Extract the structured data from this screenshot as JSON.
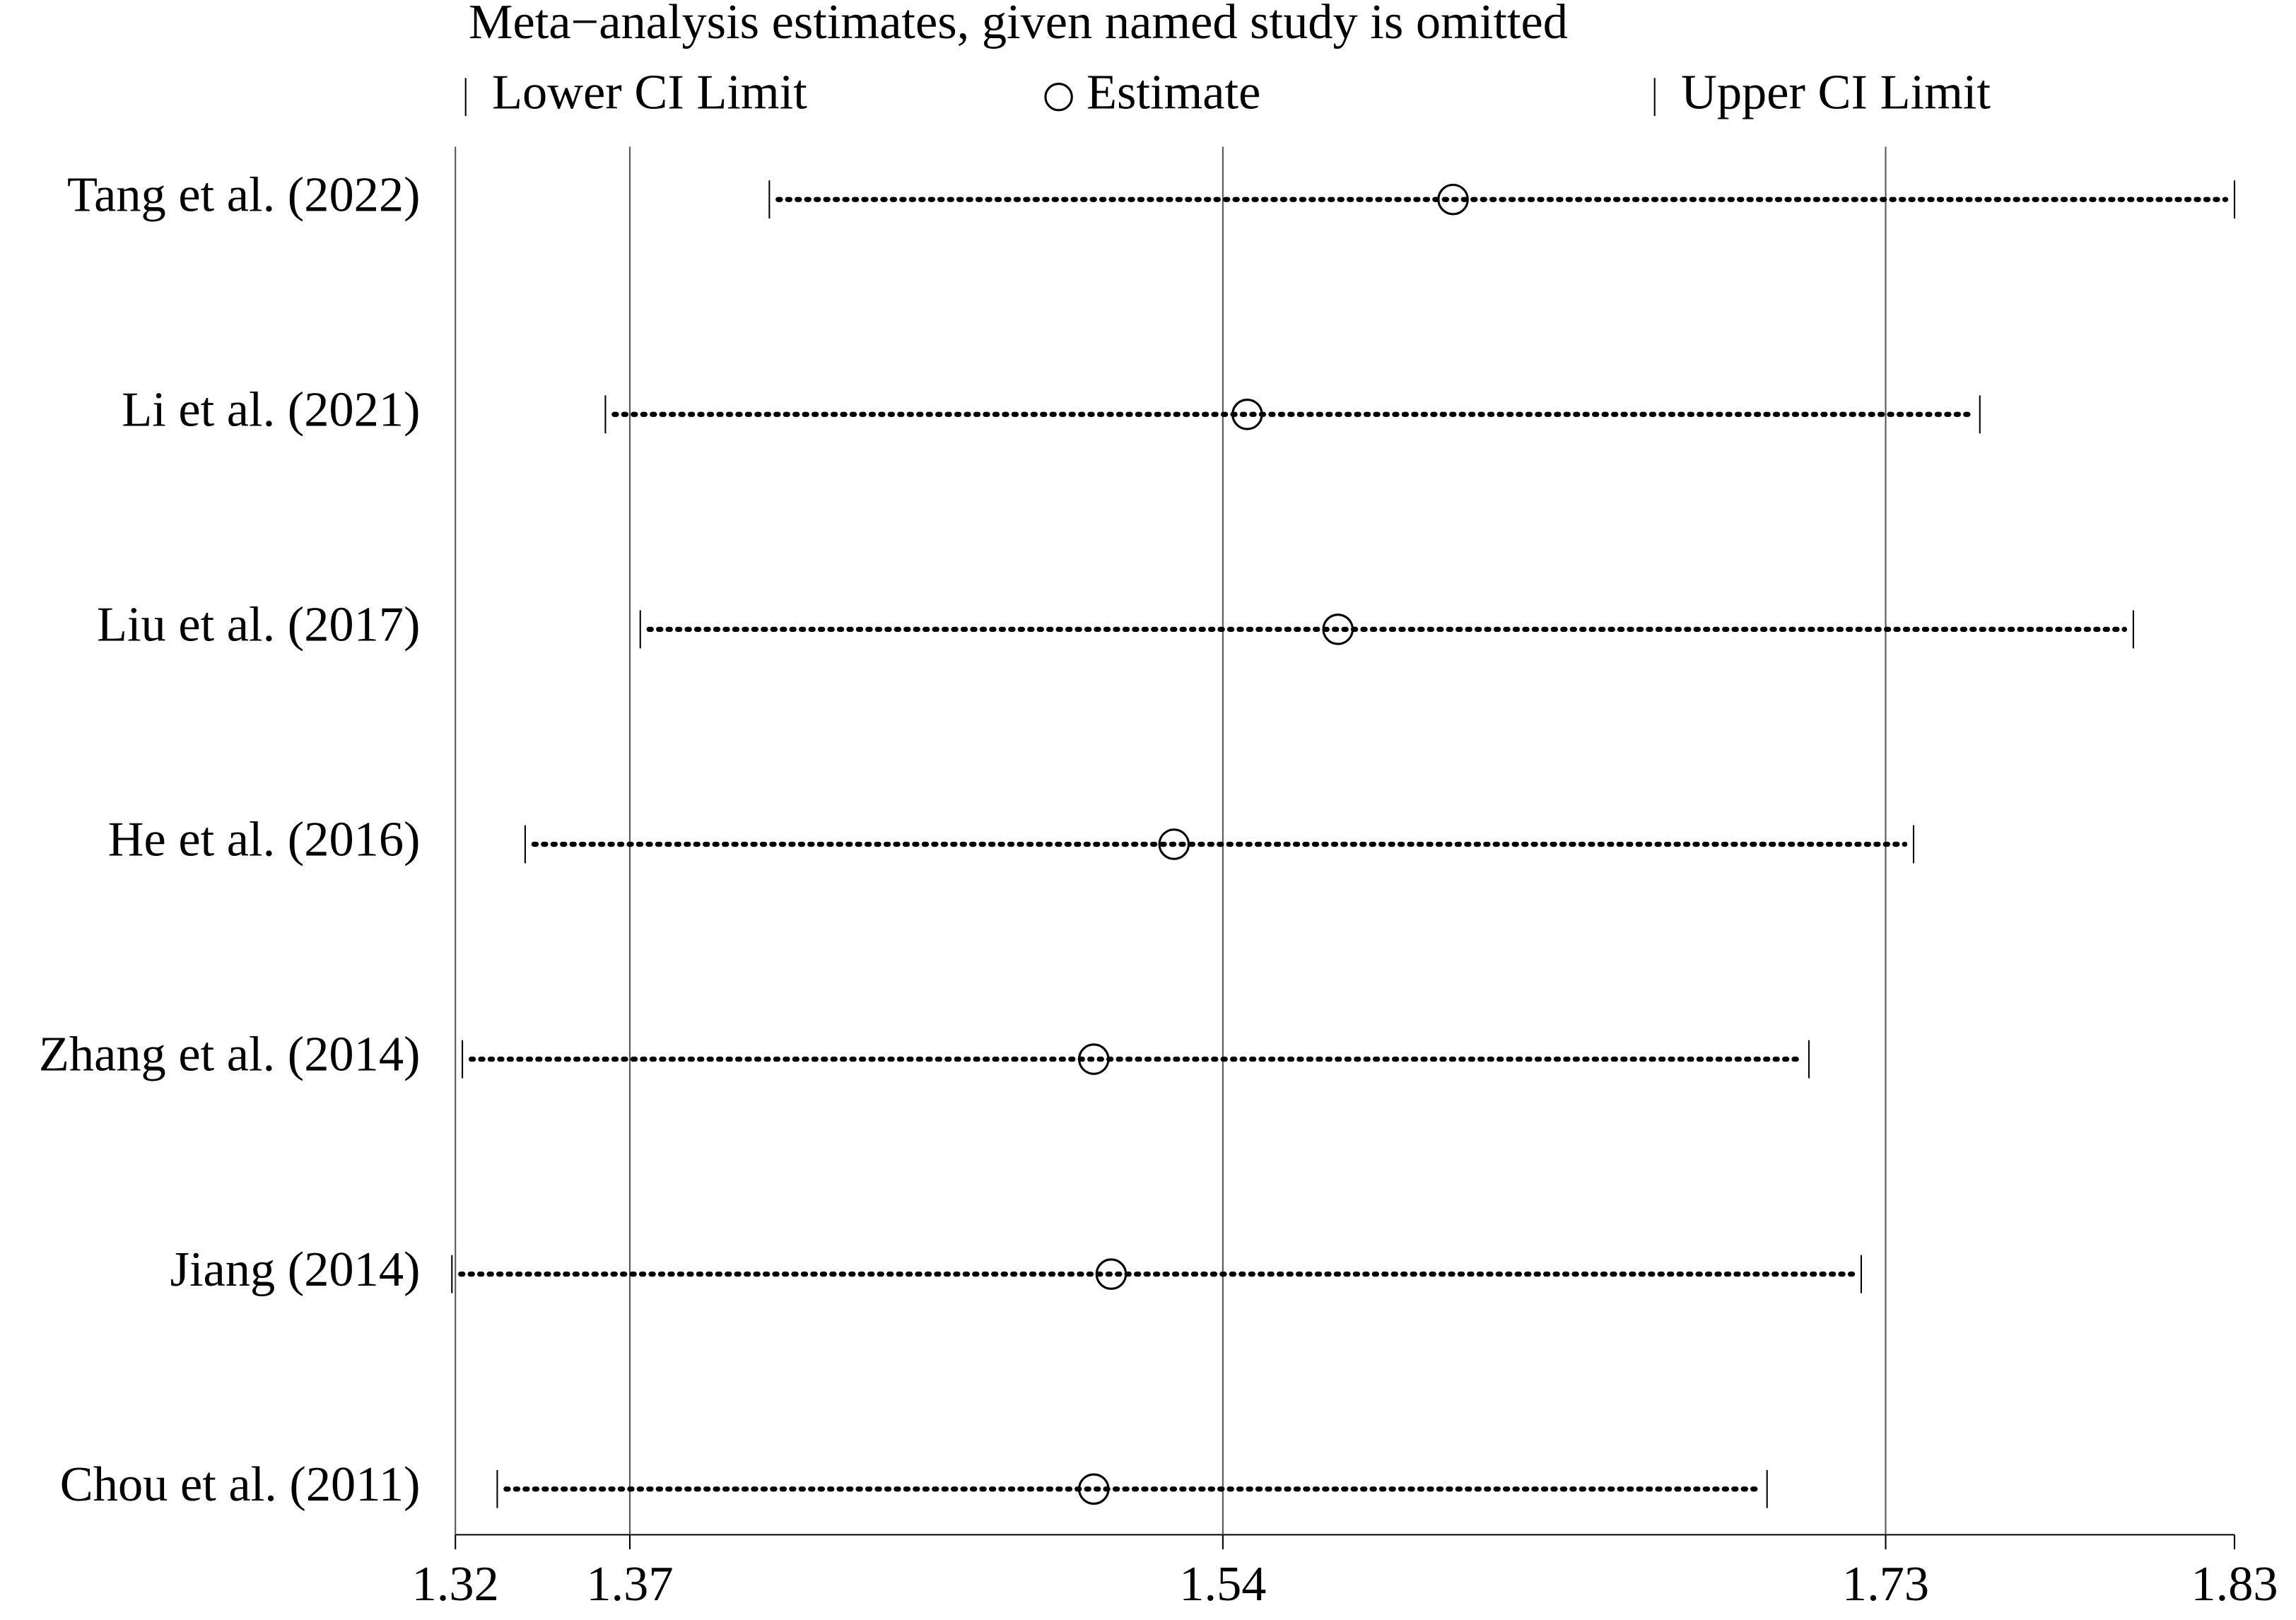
{
  "chart_data": {
    "type": "influence",
    "title": "Meta−analysis estimates, given named study is omitted",
    "categories": [
      "Tang et al. (2022)",
      "Li et al. (2021)",
      "Liu et al. (2017)",
      "He et al. (2016)",
      "Zhang et al. (2014)",
      "Jiang (2014)",
      "Chou et al. (2011)"
    ],
    "series": [
      {
        "name": "Lower CI Limit",
        "color": "#000000",
        "values": [
          1.41,
          1.363,
          1.373,
          1.34,
          1.322,
          1.319,
          1.332
        ]
      },
      {
        "name": "Estimate",
        "color": "#000000",
        "values": [
          1.606,
          1.547,
          1.573,
          1.526,
          1.503,
          1.508,
          1.503
        ]
      },
      {
        "name": "Upper CI Limit",
        "color": "#000000",
        "values": [
          1.83,
          1.757,
          1.801,
          1.738,
          1.708,
          1.723,
          1.696
        ]
      }
    ],
    "xlim": [
      1.32,
      1.83
    ],
    "xticks": [
      1.32,
      1.37,
      1.54,
      1.73,
      1.83
    ],
    "grid": true
  }
}
